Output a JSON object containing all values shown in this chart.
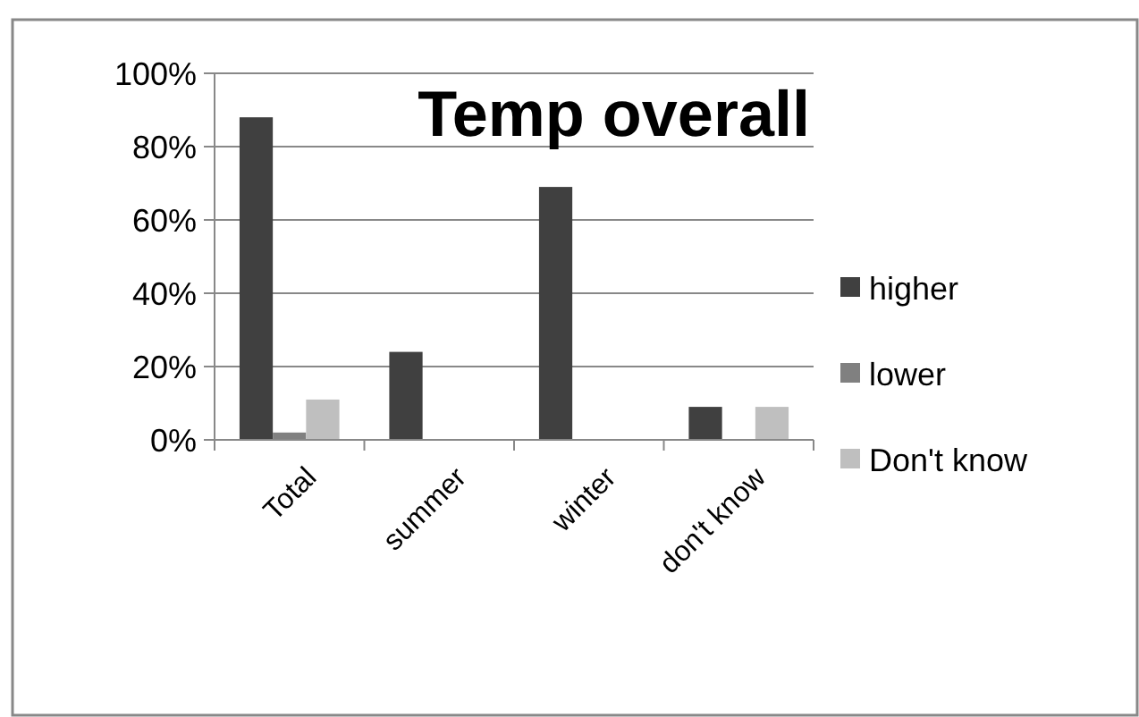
{
  "chart_data": {
    "type": "bar",
    "title": "Temp overall",
    "categories": [
      "Total",
      "summer",
      "winter",
      "don't know"
    ],
    "series": [
      {
        "name": "higher",
        "color": "#404040",
        "values": [
          0.88,
          0.24,
          0.69,
          0.09
        ]
      },
      {
        "name": "lower",
        "color": "#808080",
        "values": [
          0.02,
          0,
          0,
          0
        ]
      },
      {
        "name": "Don't know",
        "color": "#bfbfbf",
        "values": [
          0.11,
          0,
          0,
          0.09
        ]
      }
    ],
    "ylim": [
      0,
      1
    ],
    "yticks": [
      {
        "value": 0,
        "label": "0%"
      },
      {
        "value": 0.2,
        "label": "20%"
      },
      {
        "value": 0.4,
        "label": "40%"
      },
      {
        "value": 0.6,
        "label": "60%"
      },
      {
        "value": 0.8,
        "label": "80%"
      },
      {
        "value": 1,
        "label": "100%"
      }
    ],
    "grid": "y",
    "legend": "right"
  }
}
